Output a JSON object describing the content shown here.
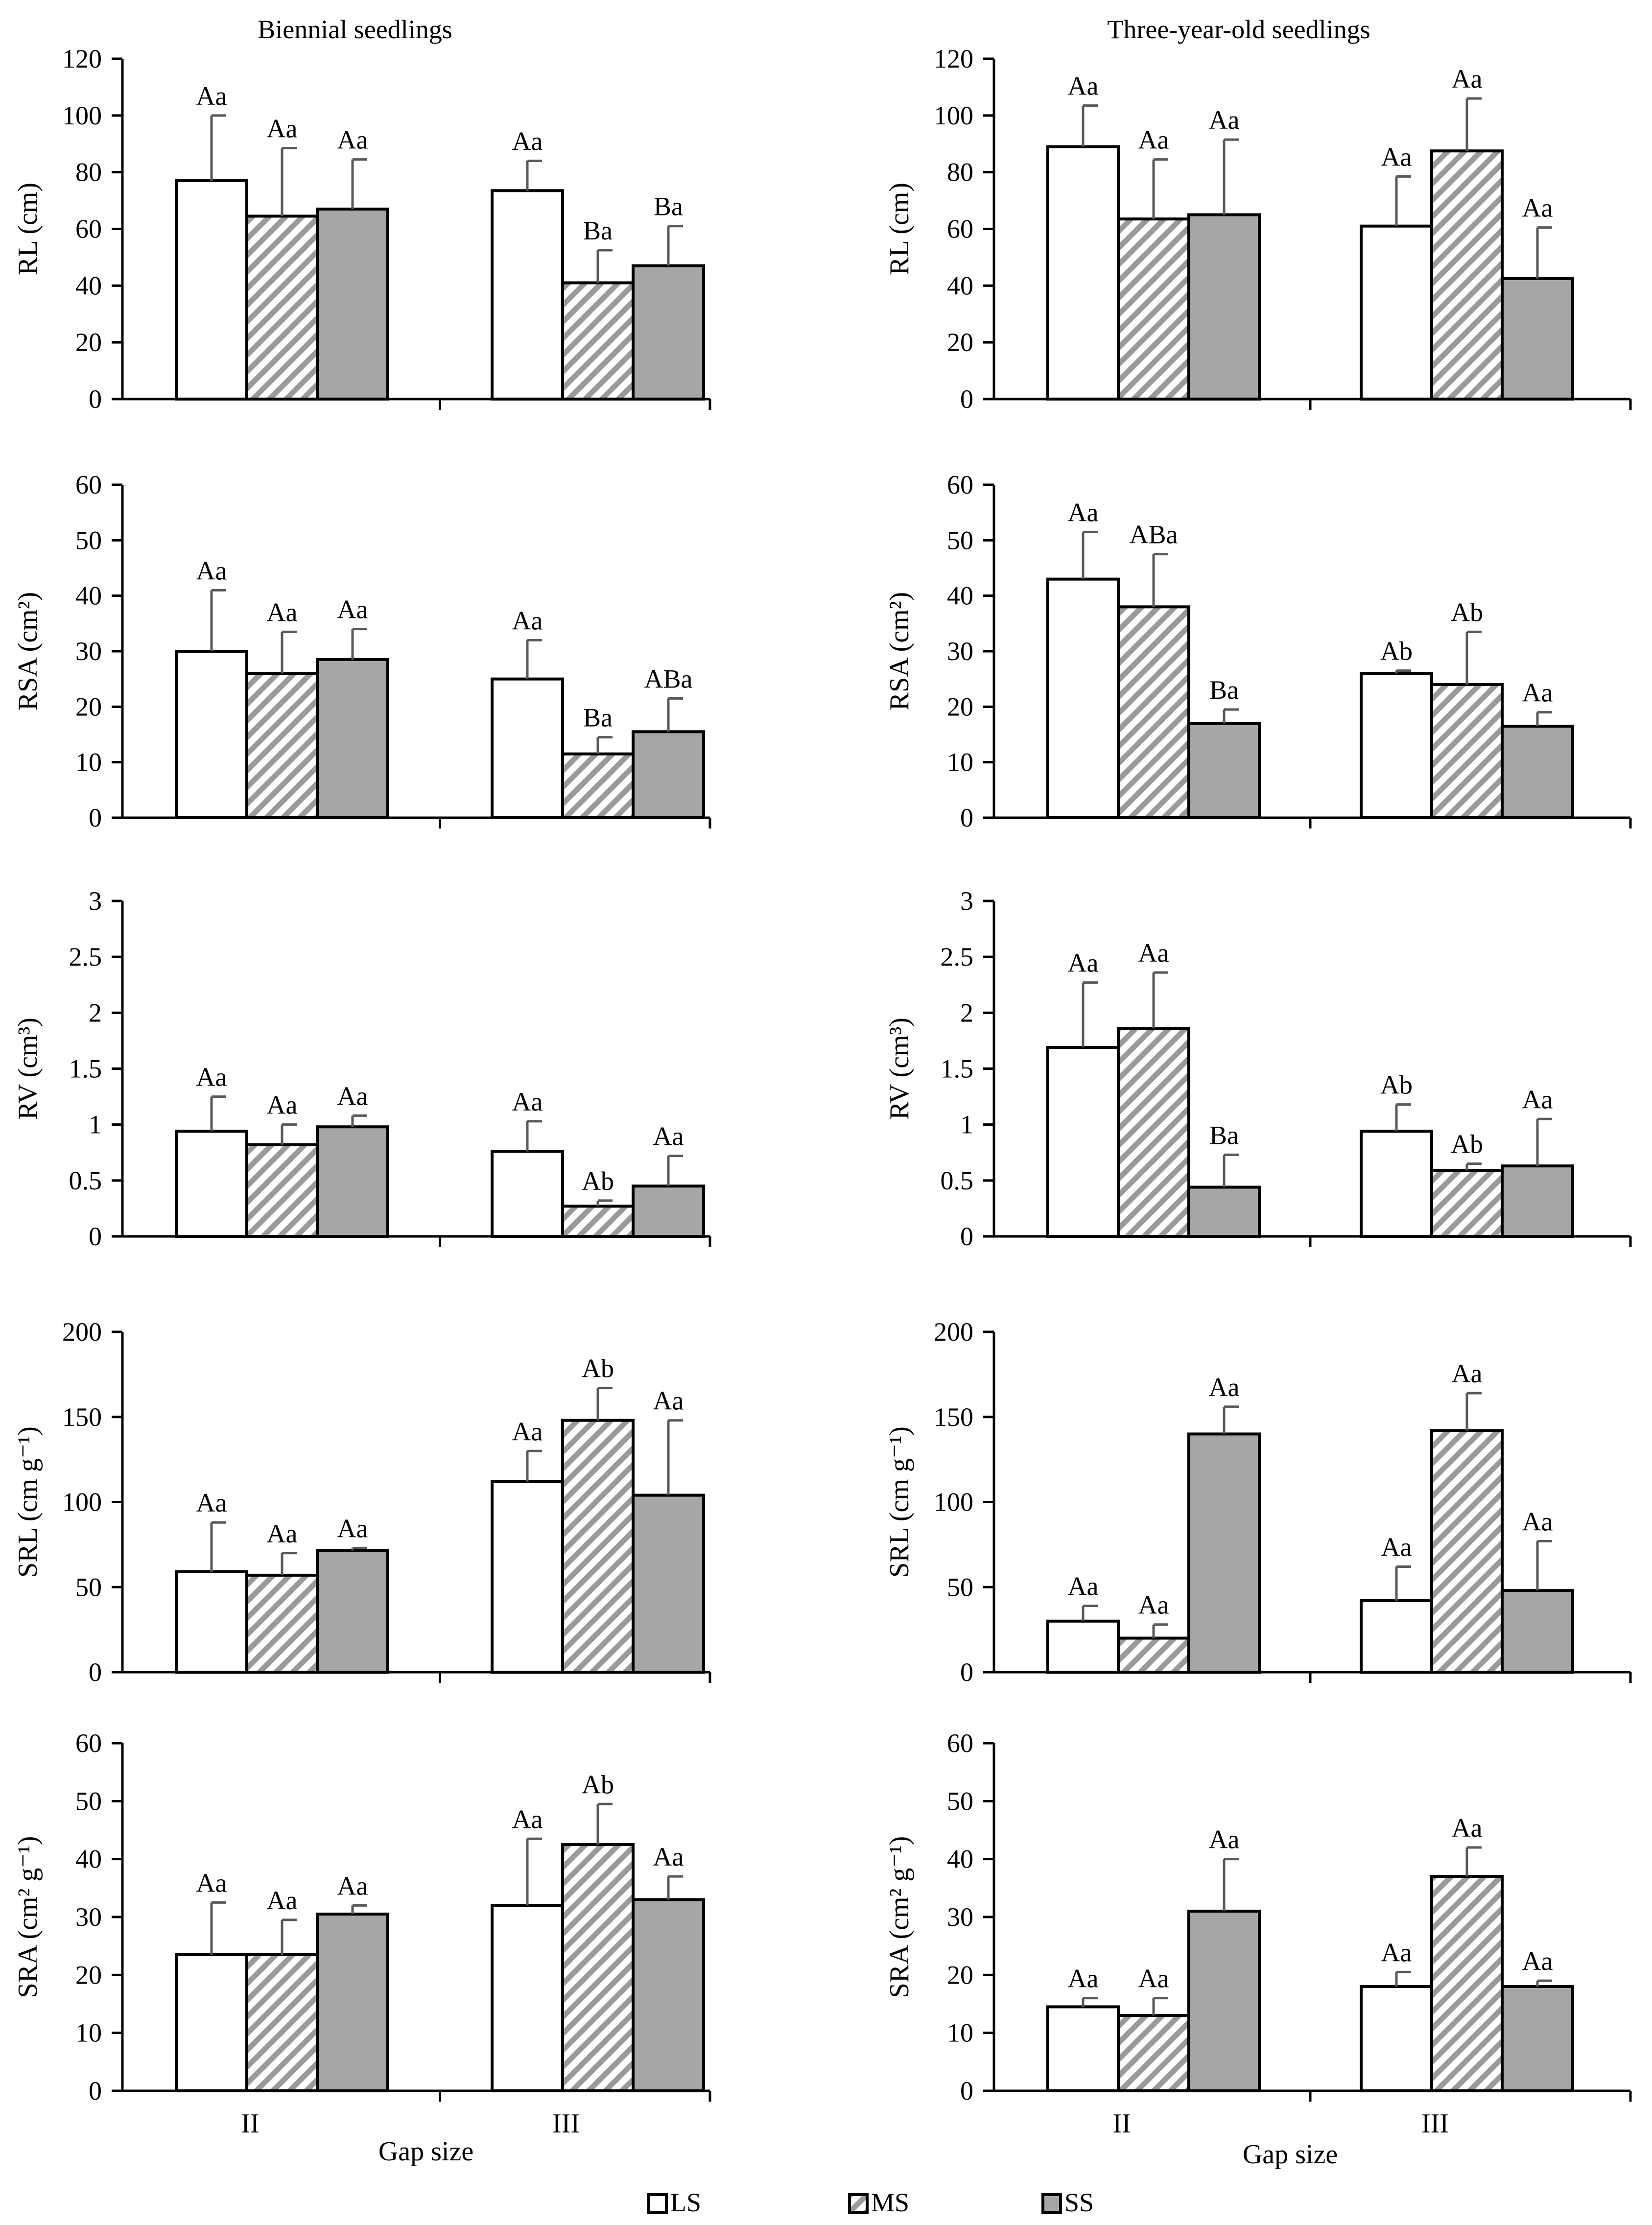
{
  "titles": {
    "left": "Biennial seedlings",
    "right": "Three-year-old seedlings"
  },
  "xlabel": "Gap size",
  "categories": [
    "II",
    "III"
  ],
  "legend": [
    {
      "key": "LS",
      "label": "LS",
      "pattern": "white"
    },
    {
      "key": "MS",
      "label": "MS",
      "pattern": "hatch"
    },
    {
      "key": "SS",
      "label": "SS",
      "pattern": "gray"
    }
  ],
  "colors": {
    "ss_fill": "#a6a6a6",
    "hatch_stripe": "#9a9a9a",
    "errorbar": "#595959",
    "axis": "#000000"
  },
  "chart_data": [
    {
      "type": "bar",
      "panel": "biennial-RL",
      "ylabel": "RL (cm)",
      "ylim": [
        0,
        120
      ],
      "ticks": [
        0,
        20,
        40,
        60,
        80,
        100,
        120
      ],
      "categories": [
        "II",
        "III"
      ],
      "series": [
        {
          "name": "LS",
          "values": [
            77,
            73.5
          ],
          "errors": [
            23,
            10.5
          ],
          "labels": [
            "Aa",
            "Aa"
          ]
        },
        {
          "name": "MS",
          "values": [
            64.5,
            41
          ],
          "errors": [
            24,
            11.5
          ],
          "labels": [
            "Aa",
            "Ba"
          ]
        },
        {
          "name": "SS",
          "values": [
            67,
            47
          ],
          "errors": [
            17.5,
            14
          ],
          "labels": [
            "Aa",
            "Ba"
          ]
        }
      ]
    },
    {
      "type": "bar",
      "panel": "three-year-RL",
      "ylabel": "RL (cm)",
      "ylim": [
        0,
        120
      ],
      "ticks": [
        0,
        20,
        40,
        60,
        80,
        100,
        120
      ],
      "categories": [
        "II",
        "III"
      ],
      "series": [
        {
          "name": "LS",
          "values": [
            89,
            61
          ],
          "errors": [
            14.5,
            17.5
          ],
          "labels": [
            "Aa",
            "Aa"
          ]
        },
        {
          "name": "MS",
          "values": [
            63.5,
            87.5
          ],
          "errors": [
            21,
            18.5
          ],
          "labels": [
            "Aa",
            "Aa"
          ]
        },
        {
          "name": "SS",
          "values": [
            65,
            42.5
          ],
          "errors": [
            26.5,
            18
          ],
          "labels": [
            "Aa",
            "Aa"
          ]
        }
      ]
    },
    {
      "type": "bar",
      "panel": "biennial-RSA",
      "ylabel": "RSA (cm²)",
      "ylim": [
        0,
        60
      ],
      "ticks": [
        0,
        10,
        20,
        30,
        40,
        50,
        60
      ],
      "categories": [
        "II",
        "III"
      ],
      "series": [
        {
          "name": "LS",
          "values": [
            30,
            25
          ],
          "errors": [
            11,
            7
          ],
          "labels": [
            "Aa",
            "Aa"
          ]
        },
        {
          "name": "MS",
          "values": [
            26,
            11.5
          ],
          "errors": [
            7.5,
            3
          ],
          "labels": [
            "Aa",
            "Ba"
          ]
        },
        {
          "name": "SS",
          "values": [
            28.5,
            15.5
          ],
          "errors": [
            5.5,
            6
          ],
          "labels": [
            "Aa",
            "ABa"
          ]
        }
      ]
    },
    {
      "type": "bar",
      "panel": "three-year-RSA",
      "ylabel": "RSA (cm²)",
      "ylim": [
        0,
        60
      ],
      "ticks": [
        0,
        10,
        20,
        30,
        40,
        50,
        60
      ],
      "categories": [
        "II",
        "III"
      ],
      "series": [
        {
          "name": "LS",
          "values": [
            43,
            26
          ],
          "errors": [
            8.5,
            0.5
          ],
          "labels": [
            "Aa",
            "Ab"
          ]
        },
        {
          "name": "MS",
          "values": [
            38,
            24
          ],
          "errors": [
            9.5,
            9.5
          ],
          "labels": [
            "ABa",
            "Ab"
          ]
        },
        {
          "name": "SS",
          "values": [
            17,
            16.5
          ],
          "errors": [
            2.5,
            2.5
          ],
          "labels": [
            "Ba",
            "Aa"
          ]
        }
      ]
    },
    {
      "type": "bar",
      "panel": "biennial-RV",
      "ylabel": "RV (cm³)",
      "ylim": [
        0,
        3
      ],
      "ticks": [
        0,
        0.5,
        1,
        1.5,
        2,
        2.5,
        3
      ],
      "categories": [
        "II",
        "III"
      ],
      "series": [
        {
          "name": "LS",
          "values": [
            0.94,
            0.76
          ],
          "errors": [
            0.31,
            0.27
          ],
          "labels": [
            "Aa",
            "Aa"
          ]
        },
        {
          "name": "MS",
          "values": [
            0.82,
            0.27
          ],
          "errors": [
            0.18,
            0.05
          ],
          "labels": [
            "Aa",
            "Ab"
          ]
        },
        {
          "name": "SS",
          "values": [
            0.98,
            0.45
          ],
          "errors": [
            0.1,
            0.27
          ],
          "labels": [
            "Aa",
            "Aa"
          ]
        }
      ]
    },
    {
      "type": "bar",
      "panel": "three-year-RV",
      "ylabel": "RV (cm³)",
      "ylim": [
        0,
        3
      ],
      "ticks": [
        0,
        0.5,
        1,
        1.5,
        2,
        2.5,
        3
      ],
      "categories": [
        "II",
        "III"
      ],
      "series": [
        {
          "name": "LS",
          "values": [
            1.69,
            0.94
          ],
          "errors": [
            0.58,
            0.24
          ],
          "labels": [
            "Aa",
            "Ab"
          ]
        },
        {
          "name": "MS",
          "values": [
            1.86,
            0.59
          ],
          "errors": [
            0.5,
            0.06
          ],
          "labels": [
            "Aa",
            "Ab"
          ]
        },
        {
          "name": "SS",
          "values": [
            0.44,
            0.63
          ],
          "errors": [
            0.29,
            0.42
          ],
          "labels": [
            "Ba",
            "Aa"
          ]
        }
      ]
    },
    {
      "type": "bar",
      "panel": "biennial-SRL",
      "ylabel": "SRL (cm g⁻¹)",
      "ylim": [
        0,
        200
      ],
      "ticks": [
        0,
        50,
        100,
        150,
        200
      ],
      "categories": [
        "II",
        "III"
      ],
      "series": [
        {
          "name": "LS",
          "values": [
            59,
            112
          ],
          "errors": [
            29,
            18
          ],
          "labels": [
            "Aa",
            "Aa"
          ]
        },
        {
          "name": "MS",
          "values": [
            57,
            148
          ],
          "errors": [
            13,
            19
          ],
          "labels": [
            "Aa",
            "Ab"
          ]
        },
        {
          "name": "SS",
          "values": [
            71.5,
            104
          ],
          "errors": [
            1.5,
            44
          ],
          "labels": [
            "Aa",
            "Aa"
          ]
        }
      ]
    },
    {
      "type": "bar",
      "panel": "three-year-SRL",
      "ylabel": "SRL (cm g⁻¹)",
      "ylim": [
        0,
        200
      ],
      "ticks": [
        0,
        50,
        100,
        150,
        200
      ],
      "categories": [
        "II",
        "III"
      ],
      "series": [
        {
          "name": "LS",
          "values": [
            30,
            42
          ],
          "errors": [
            9,
            20
          ],
          "labels": [
            "Aa",
            "Aa"
          ]
        },
        {
          "name": "MS",
          "values": [
            20,
            142
          ],
          "errors": [
            8,
            22
          ],
          "labels": [
            "Aa",
            "Aa"
          ]
        },
        {
          "name": "SS",
          "values": [
            140,
            48
          ],
          "errors": [
            16,
            29
          ],
          "labels": [
            "Aa",
            "Aa"
          ]
        }
      ]
    },
    {
      "type": "bar",
      "panel": "biennial-SRA",
      "ylabel": "SRA (cm² g⁻¹)",
      "ylim": [
        0,
        60
      ],
      "ticks": [
        0,
        10,
        20,
        30,
        40,
        50,
        60
      ],
      "categories": [
        "II",
        "III"
      ],
      "series": [
        {
          "name": "LS",
          "values": [
            23.5,
            32
          ],
          "errors": [
            9,
            11.5
          ],
          "labels": [
            "Aa",
            "Aa"
          ]
        },
        {
          "name": "MS",
          "values": [
            23.5,
            42.5
          ],
          "errors": [
            6,
            7
          ],
          "labels": [
            "Aa",
            "Ab"
          ]
        },
        {
          "name": "SS",
          "values": [
            30.5,
            33
          ],
          "errors": [
            1.5,
            4
          ],
          "labels": [
            "Aa",
            "Aa"
          ]
        }
      ]
    },
    {
      "type": "bar",
      "panel": "three-year-SRA",
      "ylabel": "SRA (cm² g⁻¹)",
      "ylim": [
        0,
        60
      ],
      "ticks": [
        0,
        10,
        20,
        30,
        40,
        50,
        60
      ],
      "categories": [
        "II",
        "III"
      ],
      "series": [
        {
          "name": "LS",
          "values": [
            14.5,
            18
          ],
          "errors": [
            1.5,
            2.5
          ],
          "labels": [
            "Aa",
            "Aa"
          ]
        },
        {
          "name": "MS",
          "values": [
            13,
            37
          ],
          "errors": [
            3,
            5
          ],
          "labels": [
            "Aa",
            "Aa"
          ]
        },
        {
          "name": "SS",
          "values": [
            31,
            18
          ],
          "errors": [
            9,
            1
          ],
          "labels": [
            "Aa",
            "Aa"
          ]
        }
      ]
    }
  ]
}
